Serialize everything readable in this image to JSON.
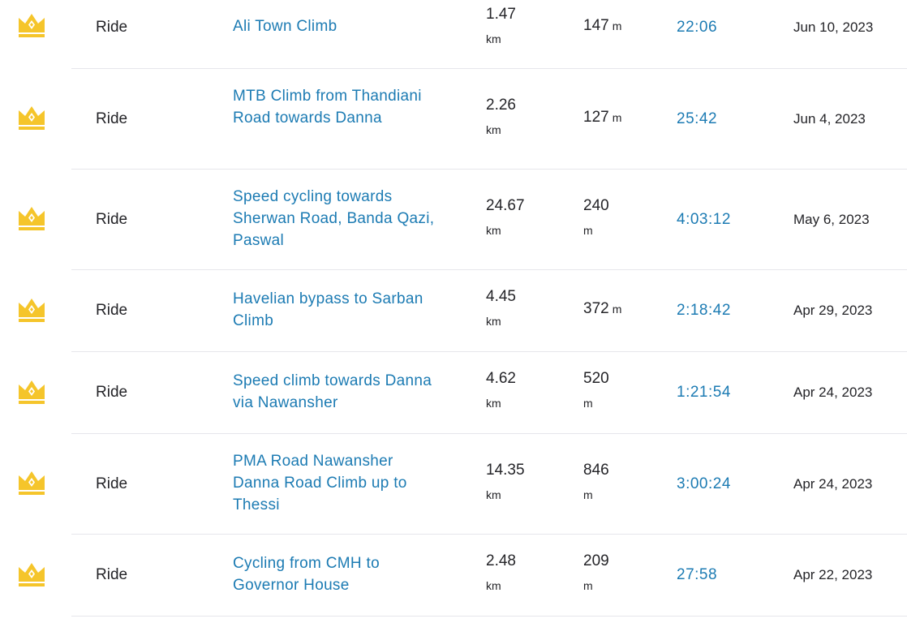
{
  "colors": {
    "link": "#1c7bb3",
    "crown": "#f5c52b",
    "text": "#242428",
    "separator": "#e6e6eb"
  },
  "rows": [
    {
      "icon": "crown-icon",
      "sport": "Ride",
      "name": "Ali Town Climb",
      "distance": "1.47",
      "distance_unit": "km",
      "elevation": "147",
      "elevation_unit": "m",
      "time": "22:06",
      "date": "Jun 10, 2023"
    },
    {
      "icon": "crown-icon",
      "sport": "Ride",
      "name": "MTB Climb from Thandiani Road towards Danna",
      "distance": "2.26",
      "distance_unit": "km",
      "elevation": "127",
      "elevation_unit": "m",
      "time": "25:42",
      "date": "Jun 4, 2023"
    },
    {
      "icon": "crown-icon",
      "sport": "Ride",
      "name": "Speed cycling towards Sherwan Road, Banda Qazi, Paswal",
      "distance": "24.67",
      "distance_unit": "km",
      "elevation": "240",
      "elevation_unit": "m",
      "time": "4:03:12",
      "date": "May 6, 2023"
    },
    {
      "icon": "crown-icon",
      "sport": "Ride",
      "name": "Havelian bypass to Sarban Climb",
      "distance": "4.45",
      "distance_unit": "km",
      "elevation": "372",
      "elevation_unit": "m",
      "time": "2:18:42",
      "date": "Apr 29, 2023"
    },
    {
      "icon": "crown-icon",
      "sport": "Ride",
      "name": "Speed climb towards Danna via Nawansher",
      "distance": "4.62",
      "distance_unit": "km",
      "elevation": "520",
      "elevation_unit": "m",
      "time": "1:21:54",
      "date": "Apr 24, 2023"
    },
    {
      "icon": "crown-icon",
      "sport": "Ride",
      "name": "PMA Road Nawansher Danna Road Climb up to Thessi",
      "distance": "14.35",
      "distance_unit": "km",
      "elevation": "846",
      "elevation_unit": "m",
      "time": "3:00:24",
      "date": "Apr 24, 2023"
    },
    {
      "icon": "crown-icon",
      "sport": "Ride",
      "name": "Cycling from CMH to Governor House",
      "distance": "2.48",
      "distance_unit": "km",
      "elevation": "209",
      "elevation_unit": "m",
      "time": "27:58",
      "date": "Apr 22, 2023"
    }
  ]
}
